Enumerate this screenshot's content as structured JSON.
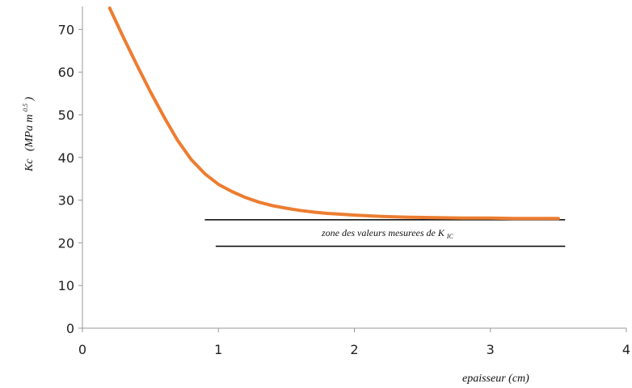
{
  "chart_data": {
    "type": "line",
    "title": "",
    "xlabel": "epaisseur (cm)",
    "ylabel": "Kc",
    "ylabel_unit": "(MPa m",
    "ylabel_unit_exp": "0.5",
    "ylabel_unit_close": ")",
    "xlim": [
      0,
      4
    ],
    "ylim": [
      0,
      75
    ],
    "x_ticks": [
      "0",
      "1",
      "2",
      "3",
      "4"
    ],
    "y_ticks": [
      "0",
      "10",
      "20",
      "30",
      "40",
      "50",
      "60",
      "70"
    ],
    "grid": false,
    "legend": "none",
    "series": [
      {
        "color": "#ED7D31",
        "x": [
          0.2,
          0.3,
          0.4,
          0.5,
          0.6,
          0.7,
          0.8,
          0.9,
          1.0,
          1.1,
          1.2,
          1.3,
          1.4,
          1.5,
          1.6,
          1.7,
          1.8,
          1.9,
          2.0,
          2.2,
          2.4,
          2.6,
          2.8,
          3.0,
          3.2,
          3.4,
          3.5
        ],
        "values": [
          75.0,
          68.2,
          61.7,
          55.4,
          49.5,
          44.0,
          39.5,
          36.2,
          33.7,
          32.0,
          30.6,
          29.5,
          28.7,
          28.1,
          27.6,
          27.2,
          26.9,
          26.7,
          26.5,
          26.2,
          26.0,
          25.9,
          25.8,
          25.8,
          25.7,
          25.7,
          25.7
        ]
      }
    ],
    "annotation": {
      "text_main": "zone des valeurs  mesurees de K",
      "text_sub": "IC",
      "band_upper": {
        "x": [
          0.9,
          3.55
        ],
        "y": 25.4
      },
      "band_lower": {
        "x": [
          0.98,
          3.55
        ],
        "y": 19.2
      },
      "line_color": "#000000"
    }
  }
}
